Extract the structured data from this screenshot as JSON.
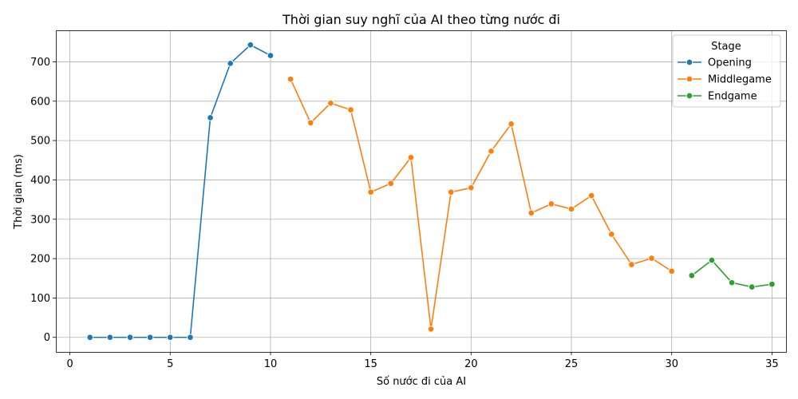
{
  "chart_data": {
    "type": "line",
    "title": "Thời gian suy nghĩ của AI theo từng nước đi",
    "xlabel": "Số nước đi của AI",
    "ylabel": "Thời gian (ms)",
    "xlim": [
      -0.7,
      35.7
    ],
    "ylim": [
      -37,
      780
    ],
    "xticks": [
      0,
      5,
      10,
      15,
      20,
      25,
      30,
      35
    ],
    "yticks": [
      0,
      100,
      200,
      300,
      400,
      500,
      600,
      700
    ],
    "grid": true,
    "legend": {
      "title": "Stage",
      "position": "top-right"
    },
    "series": [
      {
        "name": "Opening",
        "color": "#1f77b4",
        "x": [
          1,
          2,
          3,
          4,
          5,
          6,
          7,
          8,
          9,
          10
        ],
        "y": [
          0,
          0,
          0,
          0,
          0,
          0,
          558,
          696,
          743,
          716
        ]
      },
      {
        "name": "Middlegame",
        "color": "#ff7f0e",
        "x": [
          11,
          12,
          13,
          14,
          15,
          16,
          17,
          18,
          19,
          20,
          21,
          22,
          23,
          24,
          25,
          26,
          27,
          28,
          29,
          30
        ],
        "y": [
          656,
          545,
          595,
          578,
          369,
          391,
          457,
          21,
          369,
          380,
          473,
          542,
          316,
          339,
          326,
          360,
          262,
          185,
          201,
          168
        ]
      },
      {
        "name": "Endgame",
        "color": "#2ca02c",
        "x": [
          31,
          32,
          33,
          34,
          35
        ],
        "y": [
          157,
          196,
          139,
          128,
          135
        ]
      }
    ]
  }
}
